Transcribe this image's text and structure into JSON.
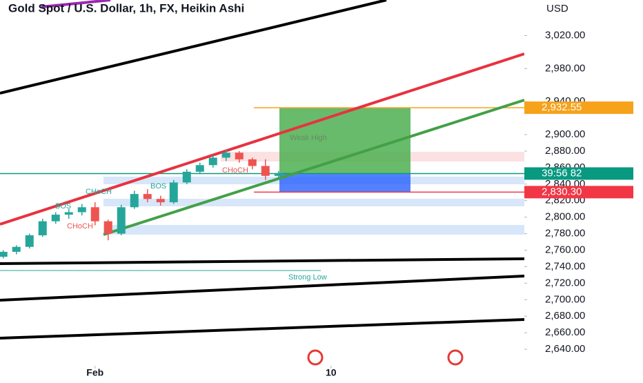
{
  "chart_data": {
    "type": "candlestick",
    "title": "Gold Spot / U.S. Dollar, 1h, FX, Heikin Ashi",
    "y_axis_label": "USD",
    "x": [
      -84,
      -72,
      -60,
      -48,
      -36,
      -24,
      -12,
      0,
      12,
      24,
      36,
      48,
      60,
      72,
      84,
      96,
      108,
      120,
      132,
      144,
      156,
      168
    ],
    "open": [
      2752,
      2758,
      2764,
      2778,
      2795,
      2803,
      2806,
      2812,
      2795,
      2780,
      2812,
      2828,
      2822,
      2818,
      2842,
      2855,
      2863,
      2872,
      2878,
      2870,
      2862,
      2850
    ],
    "high": [
      2760,
      2766,
      2780,
      2798,
      2806,
      2810,
      2816,
      2818,
      2797,
      2815,
      2832,
      2834,
      2826,
      2845,
      2858,
      2866,
      2875,
      2882,
      2880,
      2872,
      2870,
      2856
    ],
    "low": [
      2750,
      2755,
      2762,
      2776,
      2792,
      2798,
      2802,
      2790,
      2772,
      2778,
      2810,
      2818,
      2814,
      2816,
      2840,
      2852,
      2860,
      2868,
      2866,
      2858,
      2845,
      2846
    ],
    "close": [
      2758,
      2764,
      2778,
      2795,
      2803,
      2806,
      2812,
      2795,
      2780,
      2812,
      2828,
      2822,
      2818,
      2842,
      2855,
      2863,
      2872,
      2878,
      2870,
      2862,
      2850,
      2853
    ],
    "up_color": "#26a69a",
    "down_color": "#ef5350",
    "xlim": [
      -87,
      393
    ],
    "xticks": [
      {
        "value": 0,
        "label": "Feb"
      },
      {
        "value": 216,
        "label": "10"
      }
    ],
    "ylim": [
      2620,
      3063
    ],
    "yticks": [
      {
        "value": 3020,
        "label": "3,020.00"
      },
      {
        "value": 2980,
        "label": "2,980.00"
      },
      {
        "value": 2940,
        "label": "2,940.00"
      },
      {
        "value": 2900,
        "label": "2,900.00"
      },
      {
        "value": 2880,
        "label": "2,880.00"
      },
      {
        "value": 2860,
        "label": "2,860.00"
      },
      {
        "value": 2840,
        "label": "2,840.00"
      },
      {
        "value": 2820,
        "label": "2,820.00"
      },
      {
        "value": 2800,
        "label": "2,800.00"
      },
      {
        "value": 2780,
        "label": "2,780.00"
      },
      {
        "value": 2760,
        "label": "2,760.00"
      },
      {
        "value": 2740,
        "label": "2,740.00"
      },
      {
        "value": 2720,
        "label": "2,720.00"
      },
      {
        "value": 2700,
        "label": "2,700.00"
      },
      {
        "value": 2680,
        "label": "2,680.00"
      },
      {
        "value": 2660,
        "label": "2,660.00"
      },
      {
        "value": 2640,
        "label": "2,640.00"
      }
    ],
    "price_markers": [
      {
        "value": 2932.55,
        "label": "2,932.55",
        "color": "#f7a21b"
      },
      {
        "value": 2852.82,
        "label": "39:56 82",
        "color": "#089981"
      },
      {
        "value": 2830.3,
        "label": "2,830.30",
        "color": "#f23645"
      }
    ],
    "annotations": [
      "Weak High",
      "Strong Low",
      "CHoCH",
      "BOS",
      "CHoCH",
      "BOS",
      "CHoCH"
    ]
  }
}
